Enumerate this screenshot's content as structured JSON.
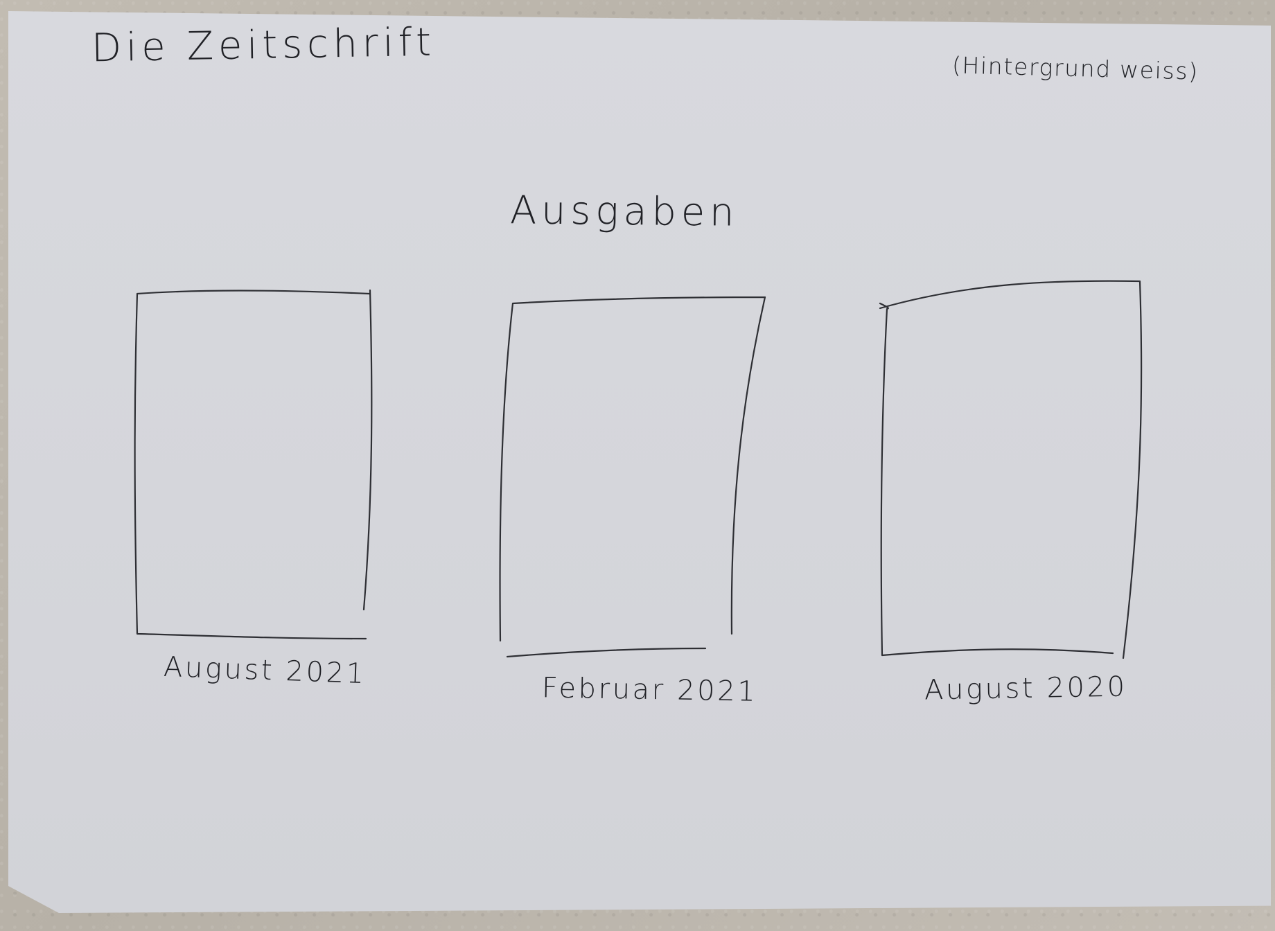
{
  "header": {
    "brand": "Die Zeitschrift",
    "background_note": "(Hintergrund weiss)"
  },
  "main": {
    "section_title": "Ausgaben",
    "issues": [
      {
        "label": "August 2021"
      },
      {
        "label": "Februar 2021"
      },
      {
        "label": "August 2020"
      }
    ]
  },
  "colors": {
    "paper": "#d6d7dc",
    "ink": "#2e2f34",
    "surface": "#bdb7ad"
  }
}
